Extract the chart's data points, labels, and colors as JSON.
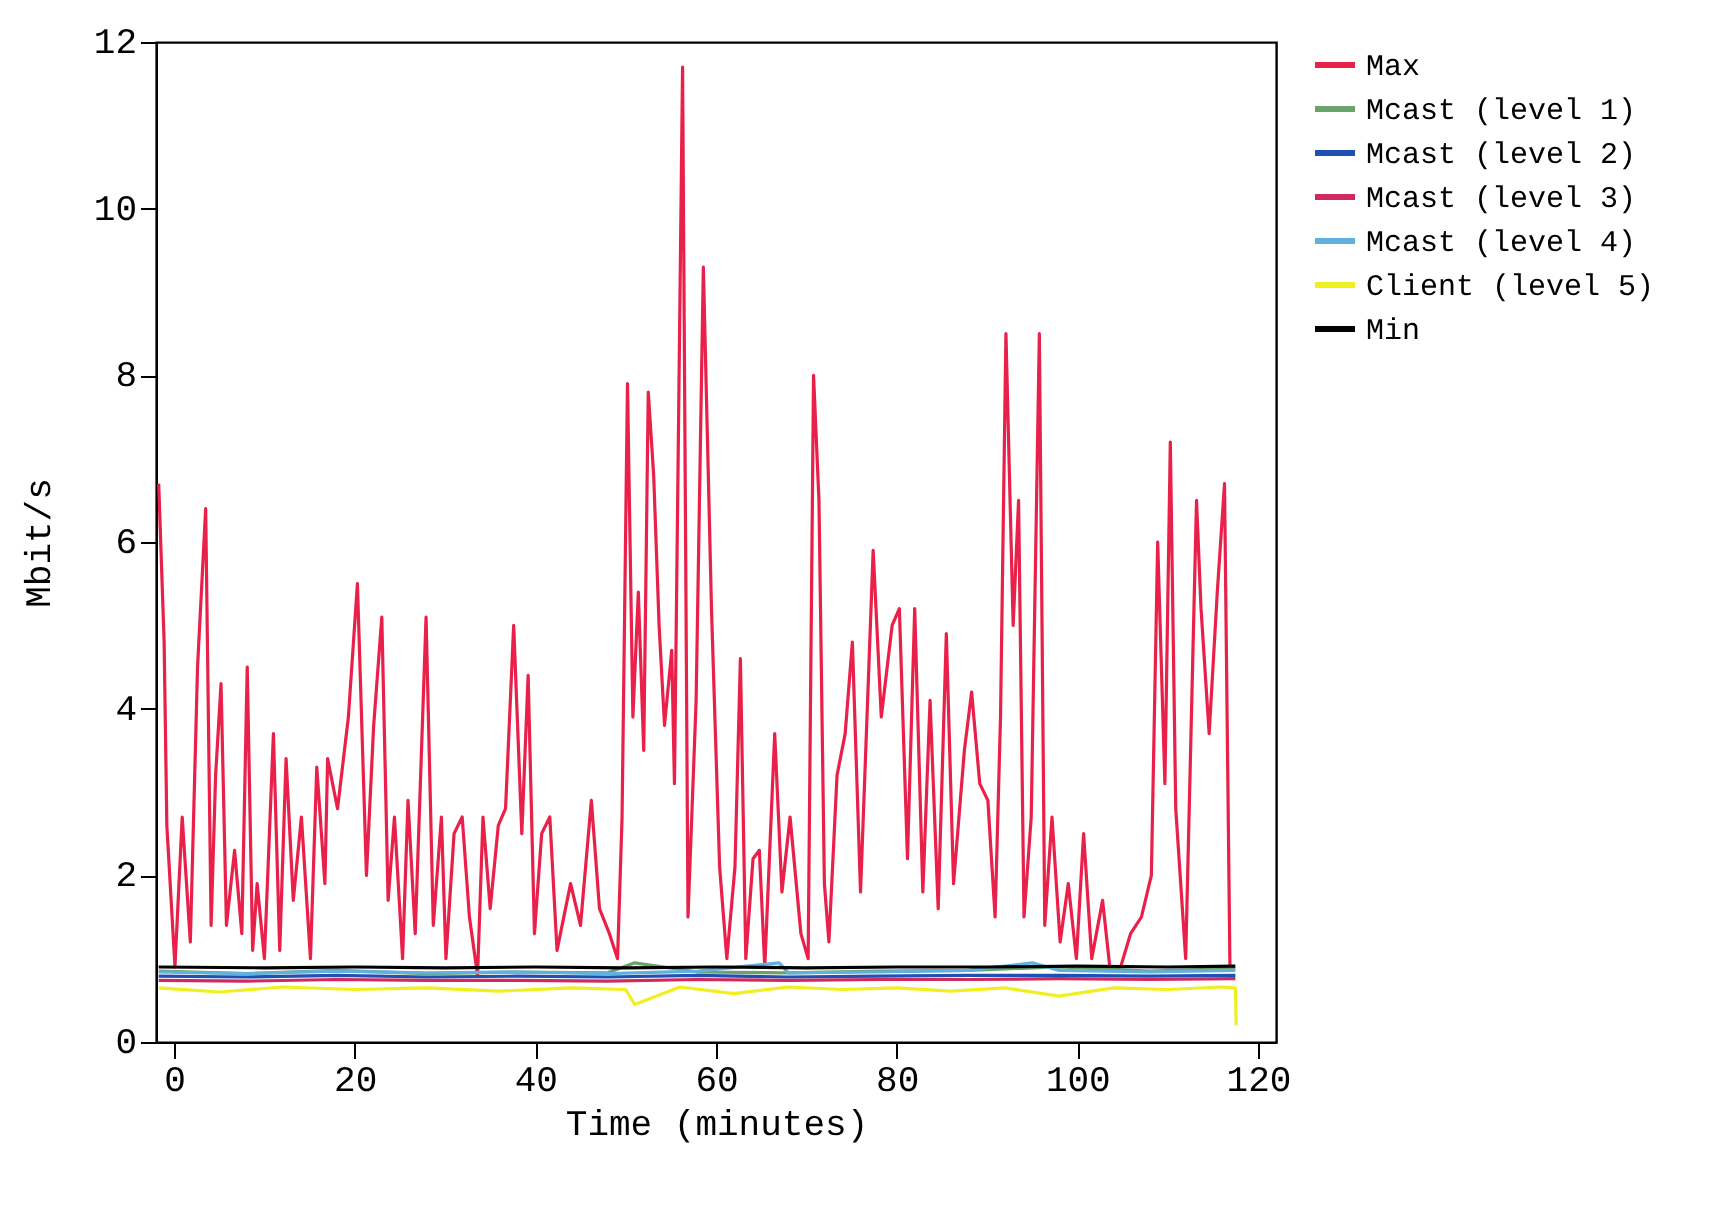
{
  "chart_data": {
    "type": "line",
    "xlabel": "Time (minutes)",
    "ylabel": "Mbit/s",
    "xlim": [
      -2,
      122
    ],
    "ylim": [
      0,
      12
    ],
    "xticks": [
      0,
      20,
      40,
      60,
      80,
      100,
      120
    ],
    "yticks": [
      0,
      2,
      4,
      6,
      8,
      10,
      12
    ],
    "legend": "top right",
    "grid": false,
    "line_style": "solid",
    "marker": "none",
    "series": [
      {
        "name": "Max",
        "color": "#e8204a",
        "x": [
          -1.7,
          -1.1,
          -0.8,
          0.1,
          0.9,
          1.8,
          2.6,
          3.5,
          4.1,
          4.6,
          5.2,
          5.8,
          6.7,
          7.5,
          8.1,
          8.7,
          9.2,
          10.0,
          11.0,
          11.7,
          12.4,
          13.2,
          14.1,
          15.1,
          15.8,
          16.7,
          17.0,
          18.1,
          19.3,
          20.3,
          21.3,
          22.1,
          23.0,
          23.7,
          24.4,
          25.3,
          25.9,
          26.7,
          27.9,
          28.7,
          29.6,
          30.1,
          31.0,
          31.9,
          32.7,
          33.6,
          34.2,
          35.0,
          35.9,
          36.7,
          37.6,
          38.5,
          39.2,
          39.9,
          40.7,
          41.6,
          42.4,
          43.9,
          45.0,
          46.2,
          47.1,
          48.2,
          49.1,
          49.6,
          50.2,
          50.8,
          51.4,
          52.0,
          52.5,
          53.1,
          53.7,
          54.3,
          55.1,
          55.4,
          56.3,
          56.9,
          57.8,
          58.6,
          59.5,
          60.4,
          61.2,
          62.1,
          62.7,
          63.3,
          64.1,
          64.8,
          65.4,
          66.5,
          67.3,
          68.2,
          69.4,
          70.2,
          70.8,
          71.4,
          72.0,
          72.5,
          73.4,
          74.3,
          75.1,
          76.0,
          77.4,
          78.3,
          79.5,
          80.3,
          81.2,
          82.0,
          82.9,
          83.7,
          84.6,
          85.5,
          86.3,
          87.5,
          88.3,
          89.2,
          90.1,
          90.9,
          91.5,
          92.1,
          92.9,
          93.5,
          94.1,
          94.9,
          95.8,
          96.4,
          97.2,
          98.1,
          99.0,
          99.9,
          100.7,
          101.6,
          102.8,
          103.6,
          104.8,
          105.9,
          107.1,
          108.2,
          108.9,
          109.7,
          110.3,
          110.9,
          112.0,
          113.2,
          113.7,
          114.6,
          115.5,
          116.3,
          116.9
        ],
        "values": [
          6.7,
          4.8,
          2.6,
          0.9,
          2.7,
          1.2,
          4.5,
          6.4,
          1.4,
          3.2,
          4.3,
          1.4,
          2.3,
          1.3,
          4.5,
          1.1,
          1.9,
          1.0,
          3.7,
          1.1,
          3.4,
          1.7,
          2.7,
          1.0,
          3.3,
          1.9,
          3.4,
          2.8,
          3.9,
          5.5,
          2.0,
          3.8,
          5.1,
          1.7,
          2.7,
          1.0,
          2.9,
          1.3,
          5.1,
          1.4,
          2.7,
          1.0,
          2.5,
          2.7,
          1.5,
          0.8,
          2.7,
          1.6,
          2.6,
          2.8,
          5.0,
          2.5,
          4.4,
          1.3,
          2.5,
          2.7,
          1.1,
          1.9,
          1.4,
          2.9,
          1.6,
          1.3,
          1.0,
          2.7,
          7.9,
          3.9,
          5.4,
          3.5,
          7.8,
          6.8,
          5.0,
          3.8,
          4.7,
          3.1,
          11.7,
          1.5,
          4.1,
          9.3,
          5.2,
          2.1,
          1.0,
          2.1,
          4.6,
          1.0,
          2.2,
          2.3,
          0.9,
          3.7,
          1.8,
          2.7,
          1.3,
          1.0,
          8.0,
          6.5,
          1.9,
          1.2,
          3.2,
          3.7,
          4.8,
          1.8,
          5.9,
          3.9,
          5.0,
          5.2,
          2.2,
          5.2,
          1.8,
          4.1,
          1.6,
          4.9,
          1.9,
          3.5,
          4.2,
          3.1,
          2.9,
          1.5,
          3.9,
          8.5,
          5.0,
          6.5,
          1.5,
          2.7,
          8.5,
          1.4,
          2.7,
          1.2,
          1.9,
          1.0,
          2.5,
          1.0,
          1.7,
          0.9,
          0.9,
          1.3,
          1.5,
          2.0,
          6.0,
          3.1,
          7.2,
          2.8,
          1.0,
          6.5,
          5.2,
          3.7,
          5.4,
          6.7,
          0.9
        ]
      },
      {
        "name": "Mcast (level 1)",
        "color": "#6aa36a",
        "x": [
          -1.7,
          8,
          18,
          28,
          38,
          48,
          51,
          58,
          68,
          78,
          88,
          98,
          108,
          117.5
        ],
        "values": [
          0.85,
          0.82,
          0.86,
          0.82,
          0.84,
          0.83,
          0.95,
          0.84,
          0.83,
          0.85,
          0.86,
          0.9,
          0.85,
          0.88
        ]
      },
      {
        "name": "Mcast (level 2)",
        "color": "#2050b0",
        "x": [
          -1.7,
          8,
          18,
          28,
          38,
          48,
          58,
          68,
          78,
          88,
          98,
          108,
          117.5
        ],
        "values": [
          0.79,
          0.78,
          0.8,
          0.78,
          0.79,
          0.78,
          0.8,
          0.78,
          0.79,
          0.8,
          0.8,
          0.79,
          0.8
        ]
      },
      {
        "name": "Mcast (level 3)",
        "color": "#d02860",
        "x": [
          -1.7,
          8,
          18,
          28,
          38,
          48,
          58,
          68,
          78,
          88,
          98,
          108,
          117.5
        ],
        "values": [
          0.74,
          0.73,
          0.75,
          0.74,
          0.74,
          0.73,
          0.75,
          0.74,
          0.75,
          0.75,
          0.76,
          0.75,
          0.76
        ]
      },
      {
        "name": "Mcast (level 4)",
        "color": "#60b0e0",
        "x": [
          -1.7,
          8,
          18,
          28,
          38,
          48,
          58,
          67,
          68,
          78,
          88,
          95,
          98,
          108,
          117.5
        ],
        "values": [
          0.84,
          0.82,
          0.85,
          0.83,
          0.84,
          0.82,
          0.85,
          0.95,
          0.83,
          0.84,
          0.86,
          0.95,
          0.86,
          0.84,
          0.86
        ]
      },
      {
        "name": "Client (level 5)",
        "color": "#f0f020",
        "x": [
          -1.7,
          5,
          12,
          20,
          28,
          36,
          44,
          50,
          51,
          56,
          62,
          68,
          74,
          80,
          86,
          92,
          98,
          104,
          110,
          116,
          117.5,
          117.6
        ],
        "values": [
          0.65,
          0.6,
          0.66,
          0.63,
          0.65,
          0.61,
          0.65,
          0.63,
          0.45,
          0.66,
          0.58,
          0.66,
          0.63,
          0.65,
          0.61,
          0.65,
          0.55,
          0.65,
          0.63,
          0.66,
          0.65,
          0.2
        ]
      },
      {
        "name": "Min",
        "color": "#000000",
        "x": [
          -1.7,
          10,
          20,
          30,
          40,
          50,
          60,
          70,
          80,
          90,
          100,
          110,
          117.5
        ],
        "values": [
          0.9,
          0.89,
          0.9,
          0.89,
          0.9,
          0.89,
          0.9,
          0.89,
          0.9,
          0.9,
          0.91,
          0.9,
          0.91
        ]
      }
    ]
  }
}
